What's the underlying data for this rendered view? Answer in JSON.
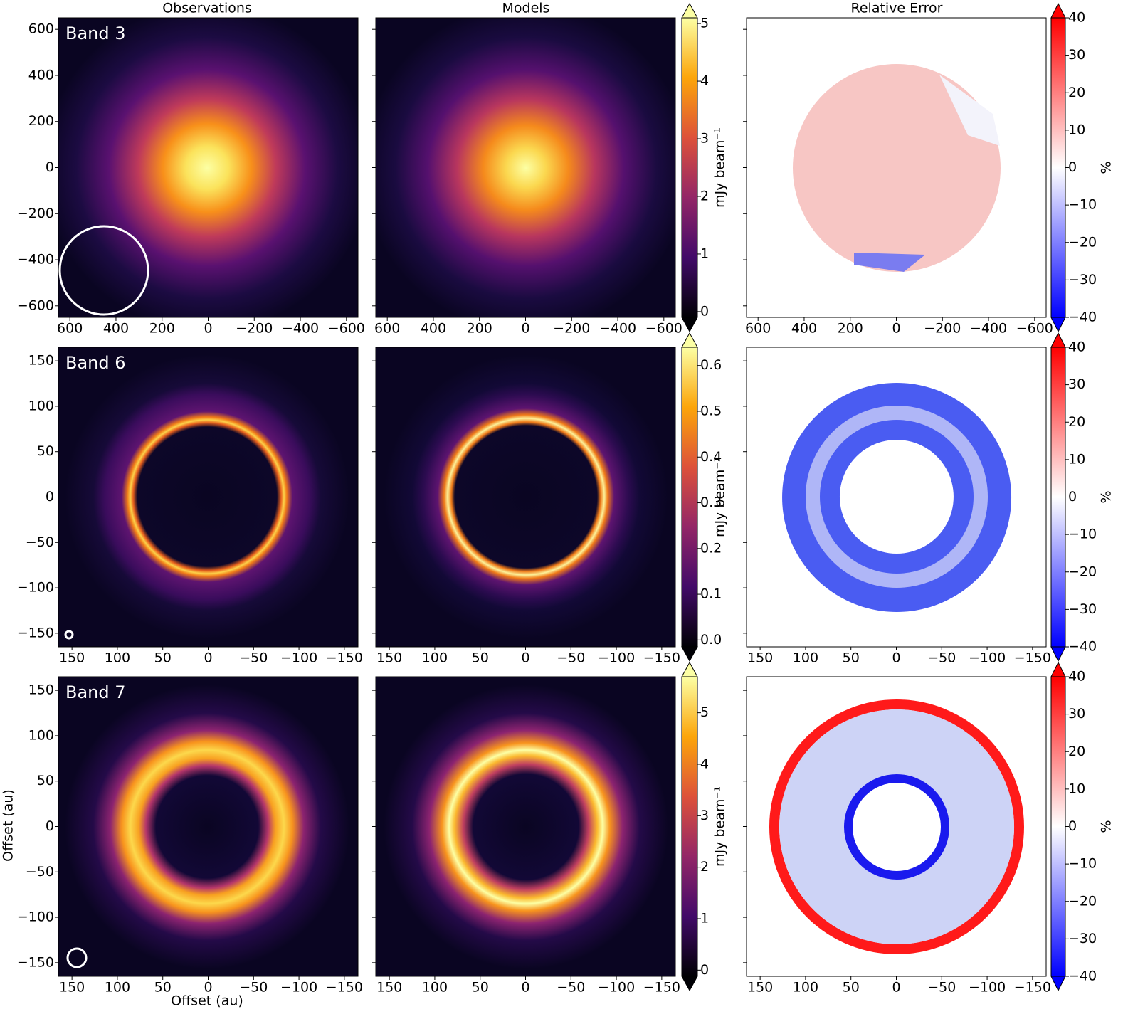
{
  "titles": [
    "Observations",
    "Models",
    "Relative Error"
  ],
  "xlabel": "Offset (au)",
  "ylabel": "Offset (au)",
  "chart_data": [
    {
      "type": "heatmap",
      "label": "Band 3",
      "xlim": [
        650,
        -650
      ],
      "ylim": [
        -650,
        650
      ],
      "xticks": [
        600,
        400,
        200,
        0,
        {
          "value": -200,
          "label": "−200"
        },
        {
          "value": -400,
          "label": "−400"
        },
        {
          "value": -600,
          "label": "−600"
        }
      ],
      "yticks": [
        {
          "value": -600,
          "label": "−600"
        },
        {
          "value": -400,
          "label": "−400"
        },
        {
          "value": -200,
          "label": "−200"
        },
        0,
        200,
        400,
        600
      ],
      "colorbar": {
        "label": "mJy beam⁻¹",
        "lim": [
          -0.1,
          5.1
        ],
        "ticks": [
          0,
          1,
          2,
          3,
          4,
          5
        ]
      },
      "error_colorbar": {
        "label": "%",
        "lim": [
          -40,
          40
        ],
        "ticks": [
          {
            "value": -40,
            "label": "−40"
          },
          {
            "value": -30,
            "label": "−30"
          },
          {
            "value": -20,
            "label": "−20"
          },
          {
            "value": -10,
            "label": "−10"
          },
          0,
          10,
          20,
          30,
          40
        ]
      }
    },
    {
      "type": "heatmap",
      "label": "Band 6",
      "xlim": [
        165,
        -165
      ],
      "ylim": [
        -165,
        165
      ],
      "xticks": [
        150,
        100,
        50,
        0,
        {
          "value": -50,
          "label": "−50"
        },
        {
          "value": -100,
          "label": "−100"
        },
        {
          "value": -150,
          "label": "−150"
        }
      ],
      "yticks": [
        {
          "value": -150,
          "label": "−150"
        },
        {
          "value": -100,
          "label": "−100"
        },
        {
          "value": -50,
          "label": "−50"
        },
        0,
        50,
        100,
        150
      ],
      "colorbar": {
        "label": "mJy beam⁻¹",
        "lim": [
          -0.015,
          0.64
        ],
        "ticks": [
          {
            "value": 0,
            "label": "0.0"
          },
          0.1,
          0.2,
          0.3,
          0.4,
          0.5,
          0.6
        ]
      },
      "error_colorbar": {
        "label": "%",
        "lim": [
          -40,
          40
        ],
        "ticks": [
          {
            "value": -40,
            "label": "−40"
          },
          {
            "value": -30,
            "label": "−30"
          },
          {
            "value": -20,
            "label": "−20"
          },
          {
            "value": -10,
            "label": "−10"
          },
          0,
          10,
          20,
          30,
          40
        ]
      }
    },
    {
      "type": "heatmap",
      "label": "Band 7",
      "xlim": [
        165,
        -165
      ],
      "ylim": [
        -165,
        165
      ],
      "xticks": [
        150,
        100,
        50,
        0,
        {
          "value": -50,
          "label": "−50"
        },
        {
          "value": -100,
          "label": "−100"
        },
        {
          "value": -150,
          "label": "−150"
        }
      ],
      "yticks": [
        {
          "value": -150,
          "label": "−150"
        },
        {
          "value": -100,
          "label": "−100"
        },
        {
          "value": -50,
          "label": "−50"
        },
        0,
        50,
        100,
        150
      ],
      "colorbar": {
        "label": "mJy beam⁻¹",
        "lim": [
          -0.12,
          5.7
        ],
        "ticks": [
          0,
          1,
          2,
          3,
          4,
          5
        ]
      },
      "error_colorbar": {
        "label": "%",
        "lim": [
          -40,
          40
        ],
        "ticks": [
          {
            "value": -40,
            "label": "−40"
          },
          {
            "value": -30,
            "label": "−30"
          },
          {
            "value": -20,
            "label": "−20"
          },
          {
            "value": -10,
            "label": "−10"
          },
          0,
          10,
          20,
          30,
          40
        ]
      }
    }
  ]
}
